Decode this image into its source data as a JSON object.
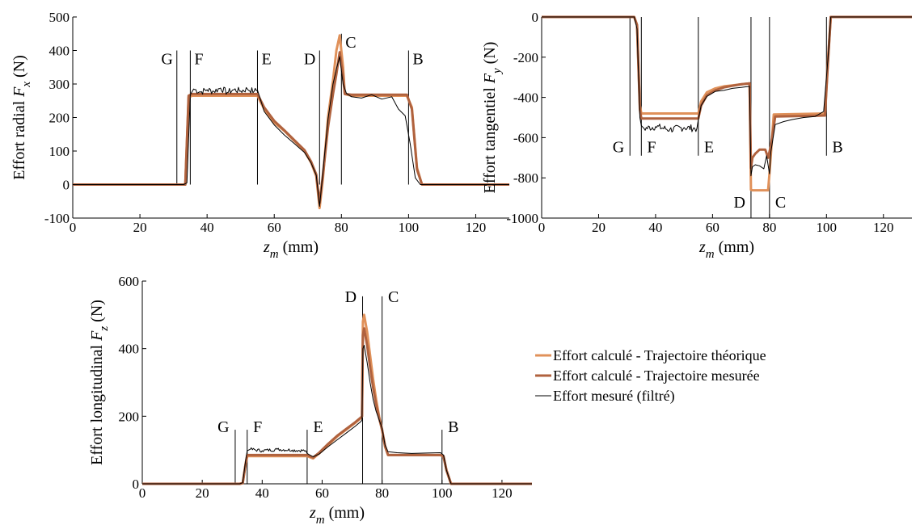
{
  "chart_data": [
    {
      "type": "line",
      "ylabel_parts": [
        "Effort radial ",
        "F",
        "x",
        " (N)"
      ],
      "xlabel_parts": [
        "z",
        "m",
        " (mm)"
      ],
      "xlim": [
        0,
        130
      ],
      "ylim": [
        -100,
        500
      ],
      "xticks": [
        0,
        20,
        40,
        60,
        80,
        100,
        120
      ],
      "yticks": [
        -100,
        0,
        100,
        200,
        300,
        400,
        500
      ],
      "markers": [
        {
          "label": "G",
          "x": 31,
          "y0": 0,
          "y1": 400
        },
        {
          "label": "F",
          "x": 35,
          "y0": 0,
          "y1": 400
        },
        {
          "label": "E",
          "x": 55,
          "y0": 0,
          "y1": 400
        },
        {
          "label": "D",
          "x": 73.5,
          "y0": 0,
          "y1": 400
        },
        {
          "label": "C",
          "x": 80,
          "y0": 0,
          "y1": 450
        },
        {
          "label": "B",
          "x": 100,
          "y0": 0,
          "y1": 400
        }
      ],
      "series": [
        {
          "name": "Effort calculé - Trajectoire théorique",
          "color": "#E0915A",
          "x": [
            0,
            30.5,
            33.5,
            34.5,
            35.5,
            55,
            57,
            60,
            63,
            66,
            69,
            71,
            72.5,
            73.5,
            74.5,
            76,
            77.5,
            78.5,
            79.5,
            80.5,
            81,
            83,
            99.5,
            101,
            102.5,
            104,
            130
          ],
          "y": [
            0,
            0,
            0,
            260,
            265,
            265,
            225,
            185,
            160,
            130,
            100,
            65,
            25,
            -70,
            20,
            200,
            310,
            400,
            445,
            350,
            270,
            265,
            265,
            230,
            50,
            0,
            0
          ]
        },
        {
          "name": "Effort calculé - Trajectoire mesurée",
          "color": "#B0623E",
          "x": [
            0,
            30.5,
            33.5,
            34.5,
            35.5,
            55,
            57,
            60,
            63,
            66,
            69,
            71,
            72.5,
            73.5,
            74.5,
            76,
            77.5,
            78.5,
            79.5,
            80.5,
            81,
            83,
            99.5,
            101,
            102.5,
            104,
            130
          ],
          "y": [
            0,
            0,
            0,
            265,
            270,
            270,
            230,
            190,
            162,
            132,
            103,
            68,
            30,
            -55,
            30,
            170,
            270,
            330,
            395,
            320,
            270,
            268,
            268,
            225,
            45,
            0,
            0
          ]
        },
        {
          "name": "Effort mesuré (filtré)",
          "color": "#000000",
          "x": [
            0,
            30.5,
            33,
            34,
            35,
            36,
            38,
            40,
            42,
            44,
            46,
            48,
            50,
            52,
            54,
            55,
            57,
            60,
            63,
            66,
            69,
            71,
            72.5,
            73.5,
            74.5,
            76,
            77.5,
            78.5,
            79.5,
            80.5,
            81.5,
            83,
            86,
            89,
            92,
            95,
            97,
            99,
            100.5,
            102,
            103.5,
            130
          ],
          "y": [
            0,
            0,
            0,
            5,
            268,
            285,
            276,
            283,
            278,
            288,
            275,
            283,
            279,
            285,
            278,
            282,
            218,
            178,
            148,
            122,
            96,
            64,
            28,
            -65,
            40,
            195,
            300,
            345,
            382,
            300,
            272,
            262,
            258,
            268,
            255,
            262,
            225,
            205,
            120,
            20,
            0,
            0
          ],
          "noise": {
            "from": 35.5,
            "to": 55,
            "amp": 10
          }
        }
      ]
    },
    {
      "type": "line",
      "ylabel_parts": [
        "Effort tangentiel ",
        "F",
        "y",
        " (N)"
      ],
      "xlabel_parts": [
        "z",
        "m",
        " (mm)"
      ],
      "xlim": [
        0,
        130
      ],
      "ylim": [
        -1000,
        0
      ],
      "xticks": [
        0,
        20,
        40,
        60,
        80,
        100,
        120
      ],
      "yticks": [
        -1000,
        -800,
        -600,
        -400,
        -200,
        0
      ],
      "markers": [
        {
          "label": "G",
          "x": 31,
          "y0": -690,
          "y1": 0,
          "lx": 29,
          "ly": -645,
          "anchor": "end"
        },
        {
          "label": "F",
          "x": 35,
          "y0": -690,
          "y1": 0,
          "lx": 37,
          "ly": -645,
          "anchor": "start"
        },
        {
          "label": "E",
          "x": 55,
          "y0": -690,
          "y1": 0,
          "lx": 57,
          "ly": -645,
          "anchor": "start"
        },
        {
          "label": "D",
          "x": 73.5,
          "y0": -1000,
          "y1": 0,
          "lx": 71.5,
          "ly": -920,
          "anchor": "end"
        },
        {
          "label": "C",
          "x": 80,
          "y0": -1000,
          "y1": 0,
          "lx": 82,
          "ly": -920,
          "anchor": "start"
        },
        {
          "label": "B",
          "x": 100,
          "y0": -690,
          "y1": 0,
          "lx": 102,
          "ly": -645,
          "anchor": "start"
        }
      ],
      "series": [
        {
          "name": "Effort calculé - Trajectoire théorique",
          "color": "#E0915A",
          "x": [
            0,
            32.5,
            33.5,
            34.5,
            35,
            55,
            56,
            58,
            61,
            64,
            67,
            70,
            73,
            73.5,
            74,
            79.5,
            80,
            81.5,
            99.5,
            100.5,
            101.5,
            130
          ],
          "y": [
            0,
            0,
            -40,
            -440,
            -480,
            -480,
            -420,
            -375,
            -355,
            -345,
            -340,
            -335,
            -330,
            -860,
            -862,
            -862,
            -780,
            -485,
            -480,
            -220,
            0,
            0
          ]
        },
        {
          "name": "Effort calculé - Trajectoire mesurée",
          "color": "#B0623E",
          "x": [
            0,
            32.5,
            33.5,
            34.5,
            35,
            55,
            56,
            58,
            61,
            64,
            67,
            70,
            73,
            73.5,
            74,
            75,
            76.5,
            78.5,
            79.5,
            80.5,
            82,
            99.5,
            100.5,
            101.5,
            130
          ],
          "y": [
            0,
            0,
            -40,
            -460,
            -505,
            -505,
            -440,
            -390,
            -365,
            -350,
            -342,
            -335,
            -330,
            -750,
            -700,
            -680,
            -660,
            -660,
            -700,
            -640,
            -495,
            -490,
            -230,
            0,
            0
          ]
        },
        {
          "name": "Effort mesuré (filtré)",
          "color": "#000000",
          "x": [
            0,
            32.5,
            33.5,
            34.5,
            35,
            36,
            40,
            45,
            50,
            54.5,
            55,
            56,
            58,
            61,
            64,
            67,
            70,
            73,
            73.5,
            74,
            75,
            76.5,
            78,
            79,
            80,
            80.5,
            82,
            85,
            88,
            92,
            96,
            99,
            100.5,
            101.5,
            130
          ],
          "y": [
            0,
            0,
            -60,
            -500,
            -540,
            -555,
            -545,
            -560,
            -550,
            -555,
            -510,
            -440,
            -395,
            -370,
            -365,
            -355,
            -350,
            -345,
            -790,
            -745,
            -735,
            -740,
            -755,
            -690,
            -780,
            -670,
            -535,
            -520,
            -510,
            -500,
            -495,
            -470,
            -210,
            0,
            0
          ],
          "noise": {
            "from": 35.5,
            "to": 54.5,
            "amp": 18
          }
        }
      ]
    },
    {
      "type": "line",
      "ylabel_parts": [
        "Effort longitudinal ",
        "F",
        "z",
        " (N)"
      ],
      "xlabel_parts": [
        "z",
        "m",
        " (mm)"
      ],
      "xlim": [
        0,
        130
      ],
      "ylim": [
        0,
        600
      ],
      "xticks": [
        0,
        20,
        40,
        60,
        80,
        100,
        120
      ],
      "yticks": [
        0,
        200,
        400,
        600
      ],
      "markers": [
        {
          "label": "G",
          "x": 31,
          "y0": 0,
          "y1": 160,
          "lx": 29,
          "ly": 170,
          "anchor": "end"
        },
        {
          "label": "F",
          "x": 35,
          "y0": 0,
          "y1": 160,
          "lx": 37,
          "ly": 170,
          "anchor": "start"
        },
        {
          "label": "E",
          "x": 55,
          "y0": 0,
          "y1": 160,
          "lx": 57,
          "ly": 170,
          "anchor": "start"
        },
        {
          "label": "D",
          "x": 73.5,
          "y0": 0,
          "y1": 555,
          "lx": 71.5,
          "ly": 555,
          "anchor": "end"
        },
        {
          "label": "C",
          "x": 80,
          "y0": 0,
          "y1": 555,
          "lx": 82,
          "ly": 555,
          "anchor": "start"
        },
        {
          "label": "B",
          "x": 100,
          "y0": 0,
          "y1": 160,
          "lx": 102,
          "ly": 170,
          "anchor": "start"
        }
      ],
      "series": [
        {
          "name": "Effort calculé - Trajectoire théorique",
          "color": "#E0915A",
          "x": [
            0,
            32.5,
            33.5,
            34.5,
            35,
            55,
            57,
            59,
            62,
            65,
            68,
            71,
            73,
            73.3,
            73.6,
            74,
            75,
            76,
            77,
            78,
            79,
            80,
            81,
            82,
            99.5,
            100.5,
            101.5,
            103,
            130
          ],
          "y": [
            0,
            0,
            2,
            60,
            82,
            82,
            75,
            90,
            115,
            140,
            160,
            180,
            195,
            200,
            480,
            500,
            450,
            380,
            310,
            250,
            200,
            160,
            110,
            85,
            85,
            80,
            40,
            0,
            0
          ]
        },
        {
          "name": "Effort calculé - Trajectoire mesurée",
          "color": "#B0623E",
          "x": [
            0,
            32.5,
            33.5,
            34.5,
            35,
            55,
            57,
            59,
            62,
            65,
            68,
            71,
            73,
            73.3,
            73.6,
            74,
            75,
            76,
            77,
            78,
            79,
            80,
            81,
            82,
            99.5,
            100.5,
            101.5,
            103,
            130
          ],
          "y": [
            0,
            0,
            2,
            60,
            85,
            85,
            78,
            92,
            118,
            142,
            162,
            182,
            197,
            200,
            440,
            460,
            410,
            345,
            285,
            235,
            195,
            160,
            112,
            85,
            85,
            82,
            40,
            0,
            0
          ]
        },
        {
          "name": "Effort mesuré (filtré)",
          "color": "#000000",
          "x": [
            0,
            32.5,
            33.5,
            34.5,
            35,
            36,
            40,
            45,
            50,
            54.5,
            55,
            57,
            59,
            62,
            65,
            68,
            71,
            73,
            73.3,
            73.6,
            74,
            75,
            76,
            77,
            78,
            79,
            80,
            81,
            82,
            85,
            90,
            95,
            99.5,
            100.5,
            101.5,
            103,
            130
          ],
          "y": [
            0,
            0,
            3,
            70,
            98,
            102,
            98,
            102,
            100,
            98,
            90,
            80,
            88,
            110,
            130,
            150,
            170,
            185,
            190,
            400,
            410,
            360,
            300,
            250,
            215,
            190,
            165,
            115,
            95,
            92,
            90,
            91,
            92,
            85,
            40,
            0,
            0
          ],
          "noise": {
            "from": 35.5,
            "to": 54.5,
            "amp": 5
          }
        }
      ]
    }
  ],
  "legend": {
    "entries": [
      {
        "label": "Effort calculé - Trajectoire théorique",
        "color": "#E0915A",
        "width": 3
      },
      {
        "label": "Effort calculé - Trajectoire mesurée",
        "color": "#B0623E",
        "width": 3
      },
      {
        "label": "Effort mesuré (filtré)",
        "color": "#000000",
        "width": 1
      }
    ]
  }
}
